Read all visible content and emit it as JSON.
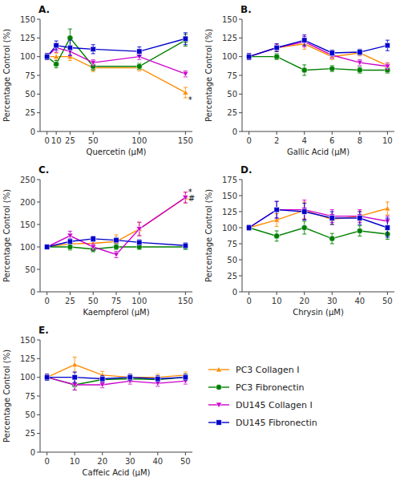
{
  "chart_data": [
    {
      "type": "line",
      "title": "A.",
      "x_label": "Quercetin (μM)",
      "y_label": "Percentage Control (%)",
      "x": [
        0,
        10,
        25,
        50,
        100,
        150
      ],
      "xlim": [
        -7.5,
        157.5
      ],
      "xticks": [
        0,
        10,
        25,
        50,
        100,
        150
      ],
      "ylim": [
        0,
        150
      ],
      "yticks": [
        0,
        25,
        50,
        75,
        100,
        125,
        150
      ],
      "grid": false,
      "series": [
        {
          "name": "PC3 Collagen I",
          "color": "#FF8C00",
          "marker": "triangle-up",
          "values": [
            100,
            100,
            100,
            85,
            85,
            52
          ],
          "errors": [
            4,
            5,
            5,
            5,
            4,
            7
          ]
        },
        {
          "name": "PC3 Fibronectin",
          "color": "#008000",
          "marker": "circle",
          "values": [
            100,
            90,
            125,
            87,
            87,
            122
          ],
          "errors": [
            4,
            5,
            12,
            5,
            4,
            8
          ]
        },
        {
          "name": "DU145 Collagen I",
          "color": "#CC00CC",
          "marker": "triangle-down",
          "values": [
            100,
            112,
            107,
            92,
            100,
            77
          ],
          "errors": [
            4,
            6,
            6,
            4,
            4,
            4
          ]
        },
        {
          "name": "DU145 Fibronectin",
          "color": "#0000CC",
          "marker": "square",
          "values": [
            100,
            115,
            112,
            110,
            107,
            124
          ],
          "errors": [
            4,
            6,
            10,
            6,
            6,
            8
          ]
        }
      ],
      "annotations": [
        {
          "x": 153,
          "y": 42,
          "text": "*"
        }
      ]
    },
    {
      "type": "line",
      "title": "B.",
      "x_label": "Gallic Acid (μM)",
      "y_label": "Percentage Control (%)",
      "x": [
        0,
        2,
        4,
        6,
        8,
        10
      ],
      "xlim": [
        -0.5,
        10.5
      ],
      "xticks": [
        0,
        2,
        4,
        6,
        8,
        10
      ],
      "ylim": [
        0,
        150
      ],
      "yticks": [
        0,
        25,
        50,
        75,
        100,
        125,
        150
      ],
      "grid": false,
      "series": [
        {
          "name": "PC3 Collagen I",
          "color": "#FF8C00",
          "marker": "triangle-up",
          "values": [
            100,
            112,
            117,
            100,
            105,
            88
          ],
          "errors": [
            4,
            5,
            7,
            4,
            4,
            4
          ]
        },
        {
          "name": "PC3 Fibronectin",
          "color": "#008000",
          "marker": "circle",
          "values": [
            100,
            100,
            82,
            84,
            82,
            82
          ],
          "errors": [
            4,
            4,
            7,
            4,
            4,
            4
          ]
        },
        {
          "name": "DU145 Collagen I",
          "color": "#CC00CC",
          "marker": "triangle-down",
          "values": [
            100,
            112,
            120,
            102,
            92,
            87
          ],
          "errors": [
            4,
            5,
            7,
            4,
            4,
            4
          ]
        },
        {
          "name": "DU145 Fibronectin",
          "color": "#0000CC",
          "marker": "square",
          "values": [
            100,
            112,
            122,
            105,
            106,
            115
          ],
          "errors": [
            4,
            5,
            7,
            4,
            4,
            7
          ]
        }
      ]
    },
    {
      "type": "line",
      "title": "C.",
      "x_label": "Kaempferol (μM)",
      "y_label": "Percentage Control (%)",
      "x": [
        0,
        25,
        50,
        75,
        100,
        150
      ],
      "xlim": [
        -7.5,
        157.5
      ],
      "xticks": [
        0,
        25,
        50,
        75,
        100,
        150
      ],
      "ylim": [
        0,
        250
      ],
      "yticks": [
        0,
        50,
        100,
        150,
        200,
        250
      ],
      "grid": false,
      "series": [
        {
          "name": "PC3 Collagen I",
          "color": "#FF8C00",
          "marker": "triangle-up",
          "values": [
            100,
            107,
            108,
            112,
            140,
            210
          ],
          "errors": [
            4,
            8,
            7,
            15,
            15,
            12
          ]
        },
        {
          "name": "PC3 Fibronectin",
          "color": "#008000",
          "marker": "circle",
          "values": [
            100,
            100,
            95,
            100,
            100,
            100
          ],
          "errors": [
            4,
            7,
            6,
            6,
            6,
            6
          ]
        },
        {
          "name": "DU145 Collagen I",
          "color": "#CC00CC",
          "marker": "triangle-down",
          "values": [
            100,
            125,
            100,
            83,
            140,
            210
          ],
          "errors": [
            4,
            10,
            7,
            7,
            15,
            12
          ]
        },
        {
          "name": "DU145 Fibronectin",
          "color": "#0000CC",
          "marker": "square",
          "values": [
            100,
            112,
            118,
            115,
            110,
            103
          ],
          "errors": [
            4,
            6,
            6,
            6,
            6,
            6
          ]
        }
      ],
      "annotations": [
        {
          "x": 153,
          "y": 222,
          "text": "*"
        },
        {
          "x": 153,
          "y": 208,
          "text": "#"
        }
      ]
    },
    {
      "type": "line",
      "title": "D.",
      "x_label": "Chrysin (μM)",
      "y_label": "Percentage Control (%)",
      "x": [
        0,
        10,
        20,
        30,
        40,
        50
      ],
      "xlim": [
        -2.5,
        52.5
      ],
      "xticks": [
        0,
        10,
        20,
        30,
        40,
        50
      ],
      "ylim": [
        0,
        175
      ],
      "yticks": [
        0,
        25,
        50,
        75,
        100,
        125,
        150,
        175
      ],
      "grid": false,
      "series": [
        {
          "name": "PC3 Collagen I",
          "color": "#FF8C00",
          "marker": "triangle-up",
          "values": [
            100,
            112,
            127,
            113,
            118,
            130
          ],
          "errors": [
            4,
            10,
            13,
            8,
            8,
            10
          ]
        },
        {
          "name": "PC3 Fibronectin",
          "color": "#008000",
          "marker": "circle",
          "values": [
            100,
            87,
            100,
            83,
            95,
            90
          ],
          "errors": [
            4,
            8,
            10,
            8,
            8,
            8
          ]
        },
        {
          "name": "DU145 Collagen I",
          "color": "#CC00CC",
          "marker": "triangle-down",
          "values": [
            100,
            128,
            128,
            118,
            118,
            110
          ],
          "errors": [
            4,
            13,
            15,
            10,
            10,
            8
          ]
        },
        {
          "name": "DU145 Fibronectin",
          "color": "#0000CC",
          "marker": "square",
          "values": [
            100,
            128,
            125,
            115,
            115,
            100
          ],
          "errors": [
            4,
            13,
            13,
            10,
            10,
            15
          ]
        }
      ]
    },
    {
      "type": "line",
      "title": "E.",
      "x_label": "Caffeic Acid (μM)",
      "y_label": "Percentage Control (%)",
      "x": [
        0,
        10,
        20,
        30,
        40,
        50
      ],
      "xlim": [
        -2.5,
        52.5
      ],
      "xticks": [
        0,
        10,
        20,
        30,
        40,
        50
      ],
      "ylim": [
        0,
        150
      ],
      "yticks": [
        0,
        25,
        50,
        75,
        100,
        125,
        150
      ],
      "grid": false,
      "legend": "right",
      "series": [
        {
          "name": "PC3 Collagen I",
          "color": "#FF8C00",
          "marker": "triangle-up",
          "values": [
            100,
            117,
            103,
            100,
            100,
            103
          ],
          "errors": [
            4,
            10,
            5,
            4,
            4,
            4
          ]
        },
        {
          "name": "PC3 Fibronectin",
          "color": "#008000",
          "marker": "circle",
          "values": [
            100,
            90,
            97,
            98,
            97,
            100
          ],
          "errors": [
            4,
            7,
            4,
            4,
            4,
            4
          ]
        },
        {
          "name": "DU145 Collagen I",
          "color": "#CC00CC",
          "marker": "triangle-down",
          "values": [
            100,
            90,
            90,
            95,
            92,
            95
          ],
          "errors": [
            4,
            7,
            4,
            4,
            4,
            4
          ]
        },
        {
          "name": "DU145 Fibronectin",
          "color": "#0000CC",
          "marker": "square",
          "values": [
            100,
            100,
            98,
            100,
            98,
            100
          ],
          "errors": [
            4,
            7,
            4,
            4,
            4,
            4
          ]
        }
      ]
    }
  ]
}
